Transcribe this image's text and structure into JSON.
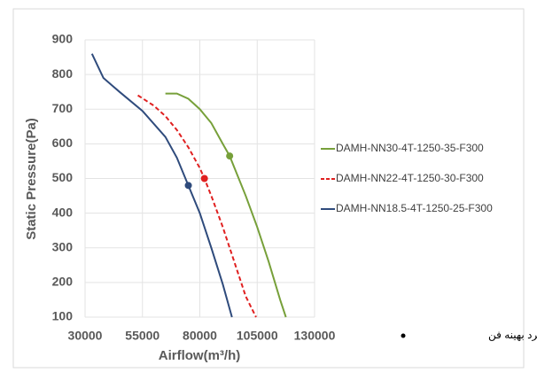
{
  "chart_data": {
    "type": "line",
    "xlabel": "Airflow(m³/h)",
    "ylabel": "Static Pressure(Pa)",
    "xlim": [
      30000,
      130000
    ],
    "xticks": [
      30000,
      55000,
      80000,
      105000,
      130000
    ],
    "ylim": [
      100,
      900
    ],
    "yticks": [
      100,
      200,
      300,
      400,
      500,
      600,
      700,
      800,
      900
    ],
    "grid": true,
    "legend": "right",
    "point_label": "نقطه عملکرد بهینه فن",
    "series": [
      {
        "name": "DAMH-NN30-4T-1250-35-F300",
        "color": "#77a03a",
        "style": "solid",
        "x": [
          65000,
          70000,
          75000,
          80000,
          85000,
          90000,
          93000,
          100000,
          105000,
          110000,
          115000,
          117500
        ],
        "values": [
          745,
          745,
          730,
          700,
          660,
          600,
          565,
          450,
          360,
          260,
          150,
          100
        ],
        "point": [
          93000,
          565
        ]
      },
      {
        "name": "DAMH-NN22-4T-1250-30-F300",
        "color": "#e02020",
        "style": "dashed",
        "x": [
          53000,
          60000,
          65000,
          70000,
          75000,
          80000,
          82000,
          85000,
          90000,
          95000,
          100000,
          104500
        ],
        "values": [
          740,
          710,
          680,
          640,
          590,
          530,
          500,
          450,
          360,
          260,
          160,
          100
        ],
        "point": [
          82000,
          500
        ]
      },
      {
        "name": "DAMH-NN18.5-4T-1250-25-F300",
        "color": "#2f4b7c",
        "style": "solid",
        "x": [
          33000,
          38000,
          45000,
          55000,
          65000,
          70000,
          75000,
          80000,
          85000,
          90000,
          94000
        ],
        "values": [
          860,
          790,
          750,
          695,
          620,
          560,
          480,
          400,
          300,
          195,
          100
        ],
        "point": [
          75000,
          480
        ]
      }
    ]
  }
}
